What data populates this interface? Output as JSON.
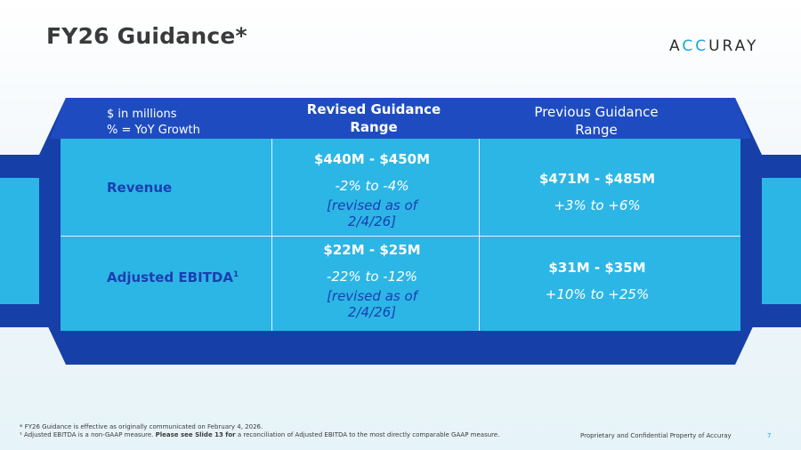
{
  "title": "FY26 Guidance*",
  "logo": {
    "part1": "A",
    "part2": "CC",
    "part3": "URAY"
  },
  "table": {
    "units_line1": "$ in millions",
    "units_line2": "% = YoY Growth",
    "col_revised": "Revised Guidance",
    "col_revised_2": "Range",
    "col_previous": "Previous Guidance",
    "col_previous_2": "Range",
    "rows": [
      {
        "label": "Revenue",
        "revised_amount": "$440M - $450M",
        "revised_pct": "-2% to -4%",
        "revised_note_1": "[revised as of",
        "revised_note_2": "2/4/26]",
        "previous_amount": "$471M - $485M",
        "previous_pct": "+3% to +6%"
      },
      {
        "label": "Adjusted EBITDA",
        "label_sup": "1",
        "revised_amount": "$22M - $25M",
        "revised_pct": "-22% to -12%",
        "revised_note_1": "[revised as of",
        "revised_note_2": "2/4/26]",
        "previous_amount": "$31M - $35M",
        "previous_pct": "+10% to +25%"
      }
    ]
  },
  "footnotes": {
    "line1": "* FY26 Guidance is effective as originally communicated on February 4, 2026.",
    "line2_a": "¹ Adjusted EBITDA is a non-GAAP measure.  ",
    "line2_b": "Please see Slide 13 for",
    "line2_c": " a reconciliation of Adjusted EBITDA to the most directly comparable GAAP measure."
  },
  "proprietary": "Proprietary and Confidential Property of Accuray",
  "page_number": "7",
  "colors": {
    "dark_blue": "#173fa8",
    "light_blue": "#2cb6e6",
    "header_blue": "#1e4cc0"
  }
}
